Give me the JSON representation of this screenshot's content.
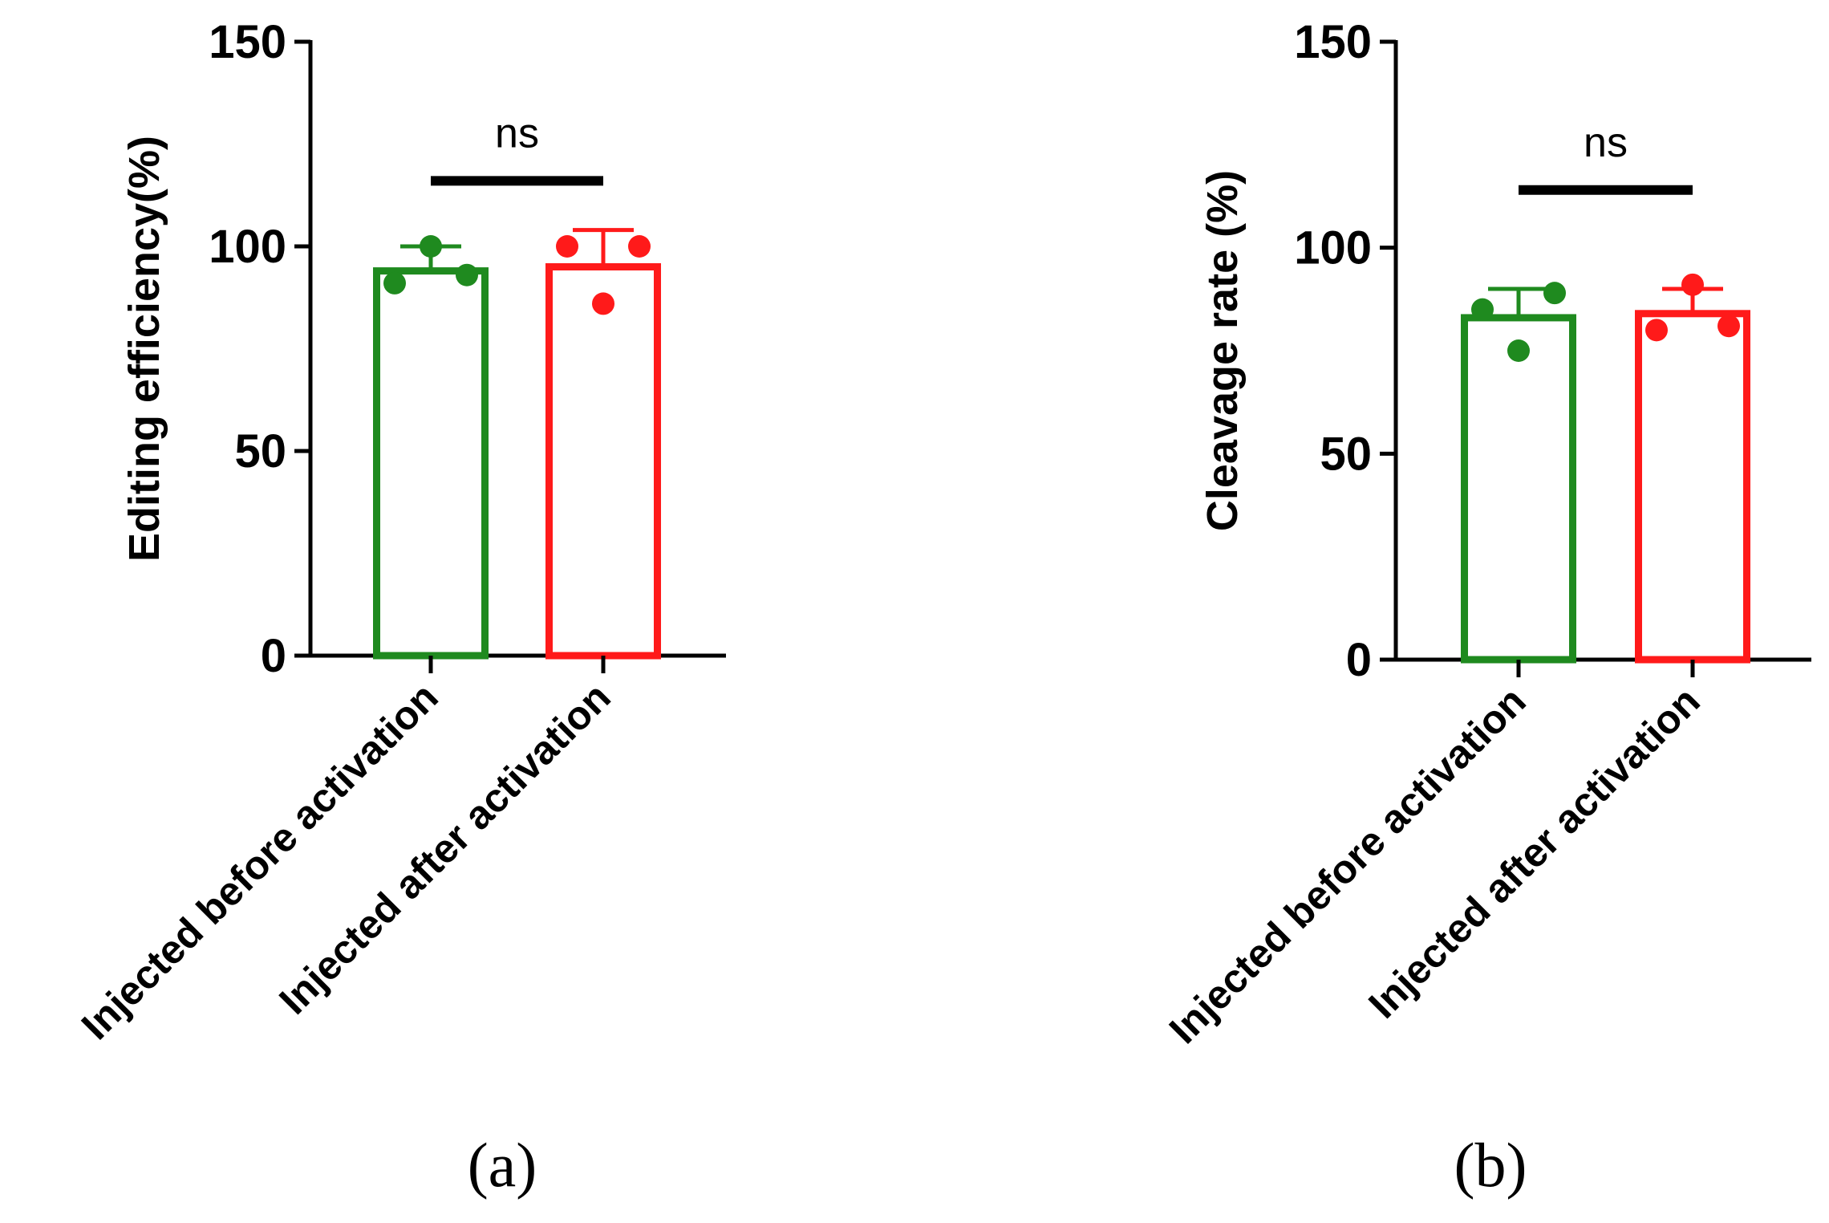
{
  "chart_data": [
    {
      "type": "bar",
      "panel_label": "(a)",
      "ylabel": "Editing efficiency(%)",
      "xlabel": "",
      "ylim": [
        0,
        150
      ],
      "yticks": [
        0,
        50,
        100,
        150
      ],
      "categories": [
        "Injected before activation",
        "Injected after activation"
      ],
      "values": [
        94,
        95
      ],
      "error": [
        6,
        9
      ],
      "points": [
        [
          91,
          100,
          93
        ],
        [
          100,
          86,
          100
        ]
      ],
      "colors": [
        "#1f8a1f",
        "#ff1a1a"
      ],
      "significance": {
        "label": "ns",
        "y": 116
      }
    },
    {
      "type": "bar",
      "panel_label": "(b)",
      "ylabel": "Cleavage rate (%)",
      "xlabel": "",
      "ylim": [
        0,
        150
      ],
      "yticks": [
        0,
        50,
        100,
        150
      ],
      "categories": [
        "Injected before activation",
        "Injected after activation"
      ],
      "values": [
        83,
        84
      ],
      "error": [
        7,
        6
      ],
      "points": [
        [
          85,
          75,
          89
        ],
        [
          80,
          91,
          81
        ]
      ],
      "colors": [
        "#1f8a1f",
        "#ff1a1a"
      ],
      "significance": {
        "label": "ns",
        "y": 114
      }
    }
  ]
}
